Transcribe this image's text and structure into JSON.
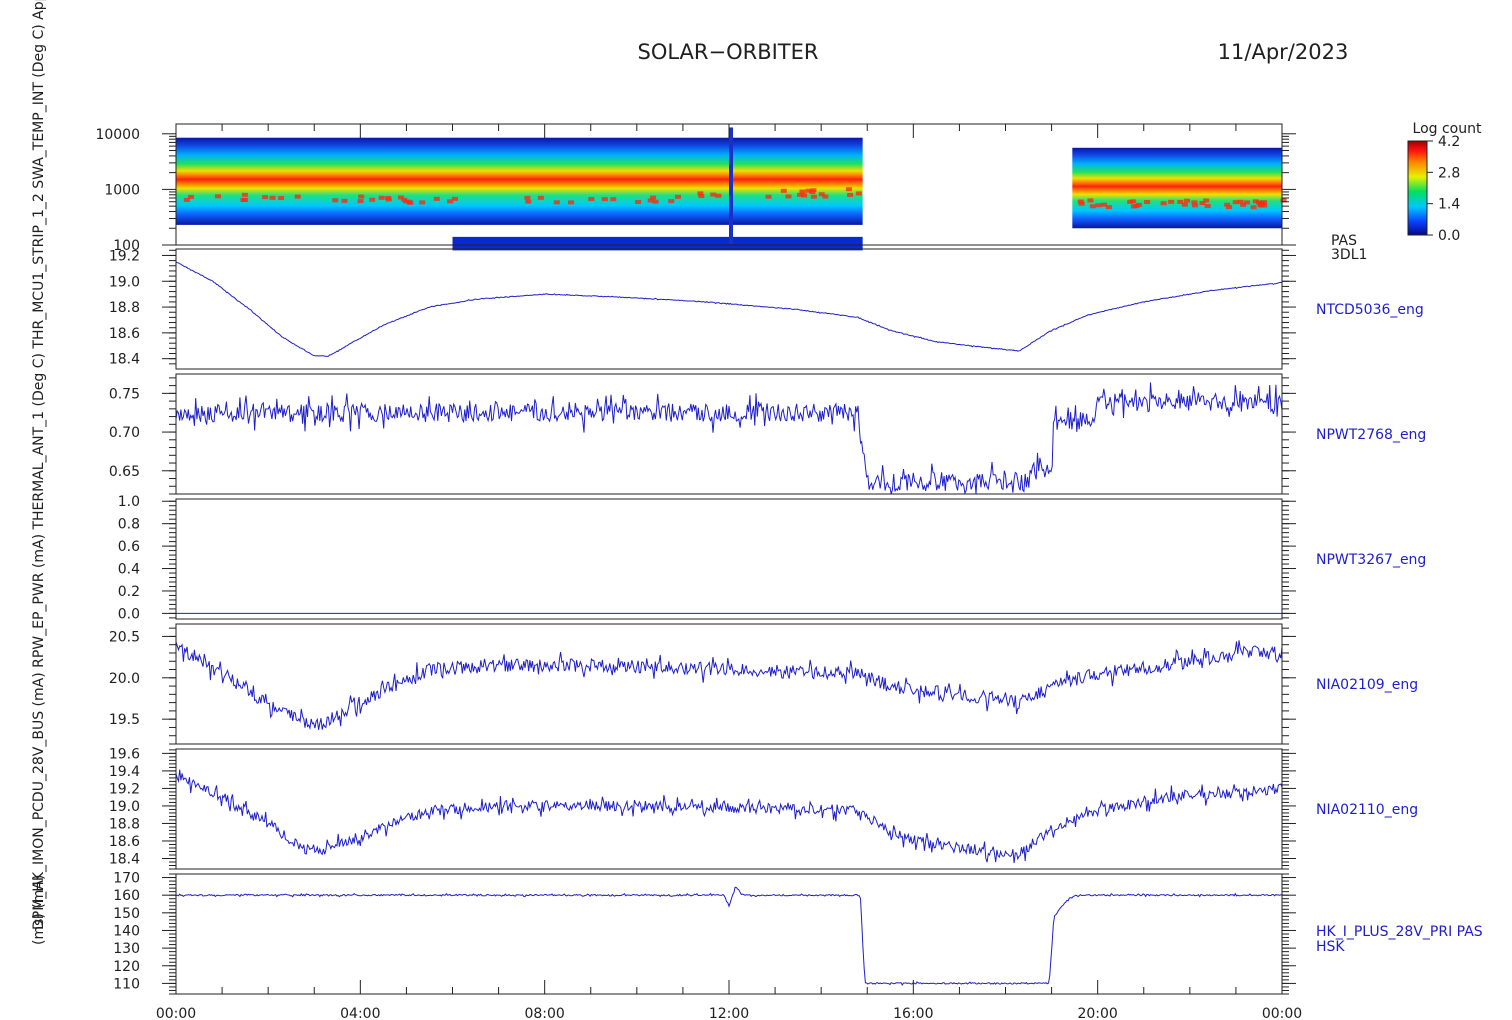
{
  "header": {
    "title": "SOLAR−ORBITER",
    "date": "11/Apr/2023"
  },
  "left_axis_labels": [
    "(ms) (mA)",
    "DPM_HK_IMON_PCDU_28V_BUS (mA) RPW_EP_PWR (mA) THERMAL_ANT_1 (Deg C) THR_MCU1_STRIP_1_2 SWA_TEMP_INT (Deg C) Approx Temp (DegC) (eV)"
  ],
  "colors": {
    "trace": "#1e1ecc",
    "axis": "#202020"
  },
  "colorbar": {
    "title": "Log count",
    "ticks": [
      "4.2",
      "2.8",
      "1.4",
      "0.0"
    ],
    "range": [
      0.0,
      4.2
    ],
    "palette": [
      "#08088a",
      "#0a40ff",
      "#00c8ff",
      "#00e060",
      "#e8f000",
      "#ff8000",
      "#ff1010",
      "#a00000"
    ]
  },
  "chart_data": {
    "type": "line",
    "x_ticks": [
      "00:00",
      "04:00",
      "08:00",
      "12:00",
      "16:00",
      "20:00",
      "00:00"
    ],
    "x_range_hours": [
      0,
      24
    ],
    "panels": [
      {
        "type": "heatmap",
        "right_label": [
          "PAS",
          "3DL1"
        ],
        "y_scale": "log",
        "ylim": [
          100,
          15000
        ],
        "y_ticks": [
          "10000",
          "1000",
          "100"
        ],
        "gaps_hours": [
          [
            14.9,
            19.45
          ]
        ],
        "peak_energy_ev": [
          [
            0,
            750
          ],
          [
            6,
            650
          ],
          [
            10,
            680
          ],
          [
            14.8,
            900
          ],
          [
            19.45,
            560
          ],
          [
            24,
            560
          ]
        ]
      },
      {
        "right_label": "NTCD5036_eng",
        "ylim": [
          18.32,
          19.25
        ],
        "y_ticks": [
          "19.2",
          "19.0",
          "18.8",
          "18.6",
          "18.4"
        ],
        "y_tick_values": [
          19.2,
          19.0,
          18.8,
          18.6,
          18.4
        ],
        "noise": 0.003,
        "points": [
          [
            0,
            19.15
          ],
          [
            0.8,
            19.0
          ],
          [
            1.6,
            18.78
          ],
          [
            2.3,
            18.57
          ],
          [
            3.0,
            18.42
          ],
          [
            3.3,
            18.42
          ],
          [
            4.5,
            18.66
          ],
          [
            5.5,
            18.8
          ],
          [
            6.5,
            18.86
          ],
          [
            8.0,
            18.9
          ],
          [
            9.5,
            18.88
          ],
          [
            11.5,
            18.84
          ],
          [
            13.5,
            18.78
          ],
          [
            14.8,
            18.72
          ],
          [
            15.5,
            18.62
          ],
          [
            16.5,
            18.53
          ],
          [
            17.5,
            18.49
          ],
          [
            18.3,
            18.46
          ],
          [
            19.0,
            18.62
          ],
          [
            19.8,
            18.74
          ],
          [
            21.0,
            18.84
          ],
          [
            22.5,
            18.93
          ],
          [
            23.5,
            18.97
          ],
          [
            24,
            18.99
          ]
        ]
      },
      {
        "right_label": "NPWT2768_eng",
        "ylim": [
          0.62,
          0.775
        ],
        "y_ticks": [
          "0.75",
          "0.70",
          "0.65"
        ],
        "y_tick_values": [
          0.75,
          0.7,
          0.65
        ],
        "noise": 0.012,
        "points": [
          [
            0,
            0.725
          ],
          [
            14.8,
            0.725
          ],
          [
            14.85,
            0.69
          ],
          [
            15.0,
            0.636
          ],
          [
            18.5,
            0.636
          ],
          [
            18.6,
            0.65
          ],
          [
            19.0,
            0.65
          ],
          [
            19.05,
            0.715
          ],
          [
            19.9,
            0.715
          ],
          [
            20.0,
            0.738
          ],
          [
            24,
            0.738
          ]
        ]
      },
      {
        "right_label": "NPWT3267_eng",
        "ylim": [
          -0.05,
          1.02
        ],
        "y_ticks": [
          "1.0",
          "0.8",
          "0.6",
          "0.4",
          "0.2",
          "0.0"
        ],
        "y_tick_values": [
          1.0,
          0.8,
          0.6,
          0.4,
          0.2,
          0.0
        ],
        "noise": 0.0,
        "points": [
          [
            0,
            0.0
          ],
          [
            24,
            0.0
          ]
        ]
      },
      {
        "right_label": "NIA02109_eng",
        "ylim": [
          19.2,
          20.65
        ],
        "y_ticks": [
          "20.5",
          "20.0",
          "19.5"
        ],
        "y_tick_values": [
          20.5,
          20.0,
          19.5
        ],
        "noise": 0.08,
        "points": [
          [
            0,
            20.4
          ],
          [
            1.0,
            20.05
          ],
          [
            2.0,
            19.7
          ],
          [
            2.8,
            19.45
          ],
          [
            3.2,
            19.45
          ],
          [
            4.5,
            19.85
          ],
          [
            5.5,
            20.1
          ],
          [
            7.0,
            20.15
          ],
          [
            9.0,
            20.15
          ],
          [
            12.0,
            20.1
          ],
          [
            14.8,
            20.05
          ],
          [
            15.5,
            19.9
          ],
          [
            16.5,
            19.8
          ],
          [
            18.0,
            19.75
          ],
          [
            18.3,
            19.7
          ],
          [
            19.0,
            19.9
          ],
          [
            20.0,
            20.05
          ],
          [
            21.5,
            20.15
          ],
          [
            23.0,
            20.3
          ],
          [
            24,
            20.3
          ]
        ]
      },
      {
        "right_label": "NIA02110_eng",
        "ylim": [
          18.28,
          19.65
        ],
        "y_ticks": [
          "19.6",
          "19.4",
          "19.2",
          "19.0",
          "18.8",
          "18.6",
          "18.4"
        ],
        "y_tick_values": [
          19.6,
          19.4,
          19.2,
          19.0,
          18.8,
          18.6,
          18.4
        ],
        "noise": 0.06,
        "points": [
          [
            0,
            19.35
          ],
          [
            1.0,
            19.1
          ],
          [
            2.0,
            18.8
          ],
          [
            2.8,
            18.5
          ],
          [
            3.2,
            18.5
          ],
          [
            4.5,
            18.75
          ],
          [
            5.5,
            18.95
          ],
          [
            7.0,
            19.0
          ],
          [
            10.0,
            19.0
          ],
          [
            14.8,
            18.95
          ],
          [
            15.5,
            18.7
          ],
          [
            16.5,
            18.55
          ],
          [
            18.3,
            18.45
          ],
          [
            19.0,
            18.75
          ],
          [
            20.0,
            18.95
          ],
          [
            21.5,
            19.1
          ],
          [
            23.0,
            19.15
          ],
          [
            24,
            19.2
          ]
        ]
      },
      {
        "right_label": [
          "HK_I_PLUS_28V_PRI PAS",
          "HSK"
        ],
        "ylim": [
          104,
          172
        ],
        "y_ticks": [
          "170",
          "160",
          "150",
          "140",
          "130",
          "120",
          "110"
        ],
        "y_tick_values": [
          170,
          160,
          150,
          140,
          130,
          120,
          110
        ],
        "noise": 0.4,
        "points": [
          [
            0,
            160
          ],
          [
            11.9,
            160
          ],
          [
            12.0,
            154
          ],
          [
            12.15,
            165
          ],
          [
            12.3,
            160
          ],
          [
            14.85,
            160
          ],
          [
            14.95,
            110
          ],
          [
            18.95,
            110
          ],
          [
            19.05,
            148
          ],
          [
            19.3,
            156
          ],
          [
            19.5,
            160
          ],
          [
            24,
            160
          ]
        ]
      }
    ]
  }
}
